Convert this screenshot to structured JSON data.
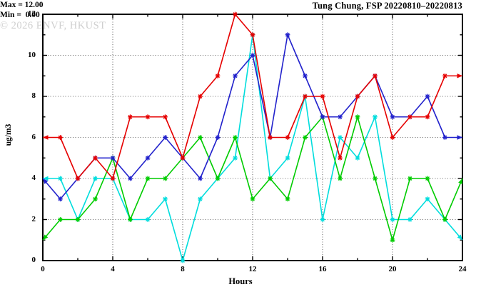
{
  "header": {
    "title": "Tung Chung, FSP 20220810–20220813"
  },
  "stats_box": {
    "max_label": "Max = 12.00",
    "min_label": "Min =  0.00"
  },
  "watermark": {
    "text": "© 2026 ENVF, HKUST"
  },
  "chart_data": {
    "type": "line",
    "title": "Tung Chung, FSP 20220810–20220813",
    "xlabel": "Hours",
    "ylabel": "ug/m3",
    "xlim": [
      0,
      24
    ],
    "ylim": [
      0,
      12
    ],
    "xticks_major": [
      0,
      4,
      8,
      12,
      16,
      20,
      24
    ],
    "xticks_minor": [
      2,
      6,
      10,
      14,
      18,
      22
    ],
    "yticks_major": [
      0,
      2,
      4,
      6,
      8,
      10,
      12
    ],
    "yticks_minor": [
      1,
      3,
      5,
      7,
      9,
      11
    ],
    "grid": "dotted-at-major-ticks",
    "legend_position": "none",
    "marker": "asterisk",
    "endpoint_style": "arrowheads at x=0 and x=24",
    "annotations": [
      "Max = 12.00",
      "Min =  0.00"
    ],
    "x": [
      0,
      1,
      2,
      3,
      4,
      5,
      6,
      7,
      8,
      9,
      10,
      11,
      12,
      13,
      14,
      15,
      16,
      17,
      18,
      19,
      20,
      21,
      22,
      23,
      24
    ],
    "series": [
      {
        "name": "series-cyan",
        "color": "#00dddd",
        "values": [
          4,
          4,
          2,
          4,
          4,
          2,
          2,
          3,
          0,
          3,
          4,
          5,
          11,
          4,
          5,
          8,
          2,
          6,
          5,
          7,
          2,
          2,
          3,
          2,
          1
        ]
      },
      {
        "name": "series-green",
        "color": "#00cc00",
        "values": [
          1,
          2,
          2,
          3,
          5,
          2,
          4,
          4,
          5,
          6,
          4,
          6,
          3,
          4,
          3,
          6,
          7,
          4,
          7,
          4,
          1,
          4,
          4,
          2,
          4
        ]
      },
      {
        "name": "series-blue",
        "color": "#2222cc",
        "values": [
          4,
          3,
          4,
          5,
          5,
          4,
          5,
          6,
          5,
          4,
          6,
          9,
          10,
          6,
          11,
          9,
          7,
          7,
          8,
          9,
          7,
          7,
          8,
          6,
          6
        ]
      },
      {
        "name": "series-red",
        "color": "#e60000",
        "values": [
          6,
          6,
          4,
          5,
          4,
          7,
          7,
          7,
          5,
          8,
          9,
          12,
          11,
          6,
          6,
          8,
          8,
          5,
          8,
          9,
          6,
          7,
          7,
          9,
          9
        ]
      }
    ],
    "colors": {
      "grid": "#666666",
      "border": "#000000",
      "text": "#000000",
      "watermark": "#cfcfcf"
    }
  }
}
